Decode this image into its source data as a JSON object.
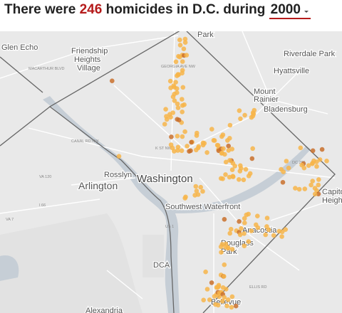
{
  "header": {
    "prefix": "There were",
    "count": 246,
    "middle": "homicides in D.C. during",
    "year": "2000"
  },
  "map": {
    "labels": [
      {
        "text": "Glen Echo",
        "kind": "place"
      },
      {
        "text": "Friendship",
        "kind": "place"
      },
      {
        "text": "Heights",
        "kind": "place"
      },
      {
        "text": "Village",
        "kind": "place"
      },
      {
        "text": "Park",
        "kind": "place"
      },
      {
        "text": "Riverdale Park",
        "kind": "place"
      },
      {
        "text": "Hyattsville",
        "kind": "place"
      },
      {
        "text": "Mount",
        "kind": "place"
      },
      {
        "text": "Rainier",
        "kind": "place"
      },
      {
        "text": "Bladensburg",
        "kind": "place"
      },
      {
        "text": "Rosslyn",
        "kind": "place"
      },
      {
        "text": "Arlington",
        "kind": "city"
      },
      {
        "text": "Washington",
        "kind": "capital"
      },
      {
        "text": "Southwest Waterfront",
        "kind": "place"
      },
      {
        "text": "Anacostia",
        "kind": "place"
      },
      {
        "text": "Capitol",
        "kind": "place"
      },
      {
        "text": "Heights",
        "kind": "place"
      },
      {
        "text": "Douglass",
        "kind": "place"
      },
      {
        "text": "Park",
        "kind": "place"
      },
      {
        "text": "DCA",
        "kind": "place"
      },
      {
        "text": "Bellevue",
        "kind": "place"
      },
      {
        "text": "Alexandria",
        "kind": "place"
      },
      {
        "text": "MACARTHUR BLVD",
        "kind": "road"
      },
      {
        "text": "CANAL RD NW",
        "kind": "road"
      },
      {
        "text": "VA 120",
        "kind": "road"
      },
      {
        "text": "I 66",
        "kind": "road"
      },
      {
        "text": "DC 295",
        "kind": "road"
      },
      {
        "text": "VA 7",
        "kind": "road"
      },
      {
        "text": "US 1",
        "kind": "road"
      },
      {
        "text": "GEORGIA AVE NW",
        "kind": "road"
      },
      {
        "text": "K ST NW",
        "kind": "road"
      },
      {
        "text": "ELLIS RD",
        "kind": "road"
      }
    ]
  }
}
